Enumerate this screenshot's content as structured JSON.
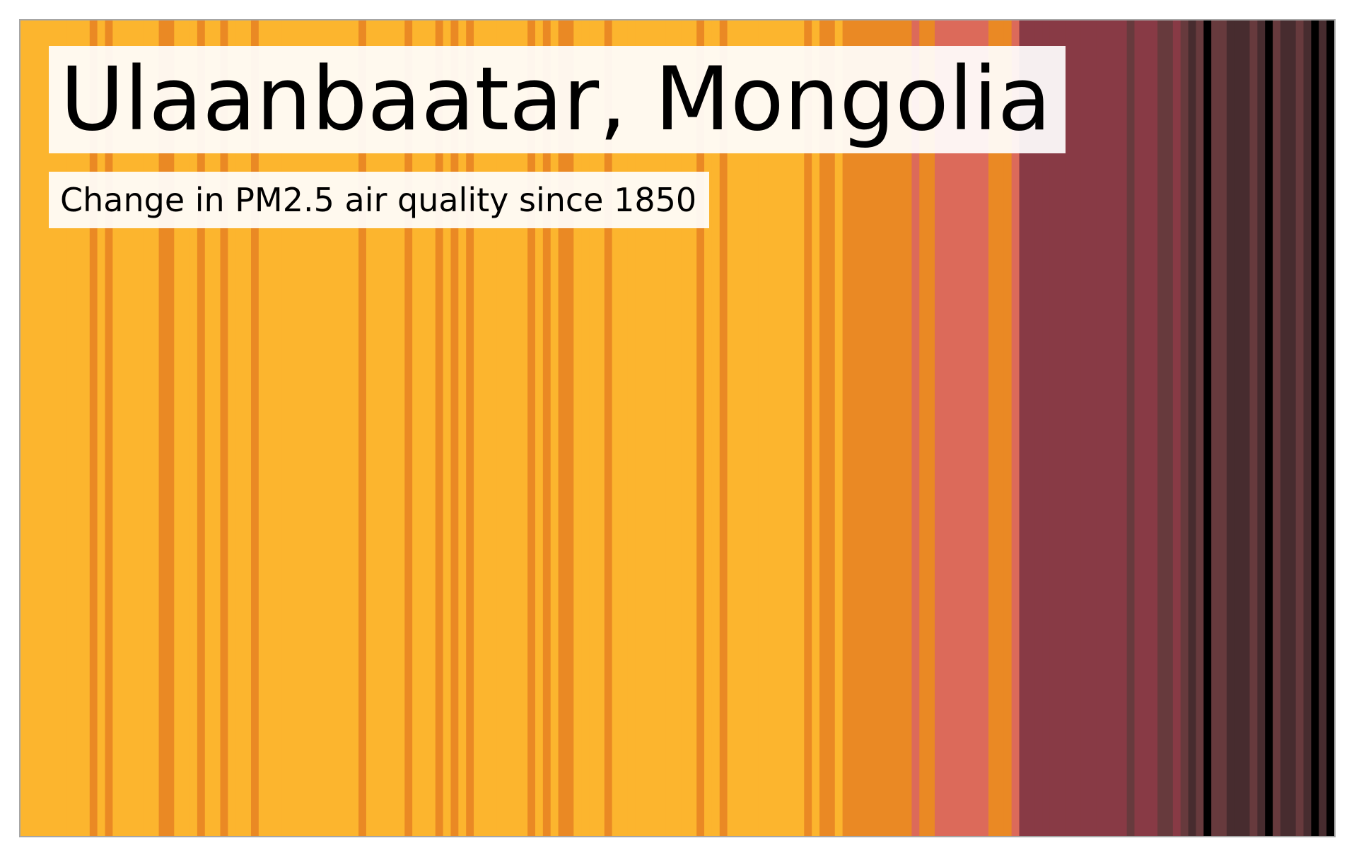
{
  "chart_data": {
    "type": "warming-stripes",
    "title": "Ulaanbaatar, Mongolia",
    "subtitle": "Change in PM2.5 air quality since 1850",
    "x_start": 1850,
    "x_end": 2021,
    "level_colors": [
      "#fcb52e",
      "#ea8924",
      "#dc6a5a",
      "#883a45",
      "#673a3d",
      "#472c2f",
      "#000000"
    ],
    "levels": [
      0,
      0,
      0,
      0,
      0,
      0,
      0,
      0,
      0,
      1,
      0,
      1,
      0,
      0,
      0,
      0,
      0,
      0,
      1,
      1,
      0,
      0,
      0,
      1,
      0,
      0,
      1,
      0,
      0,
      0,
      1,
      0,
      0,
      0,
      0,
      0,
      0,
      0,
      0,
      0,
      0,
      0,
      0,
      0,
      1,
      0,
      0,
      0,
      0,
      0,
      1,
      0,
      0,
      0,
      1,
      0,
      1,
      0,
      1,
      0,
      0,
      0,
      0,
      0,
      0,
      0,
      1,
      0,
      1,
      0,
      1,
      1,
      0,
      0,
      0,
      0,
      1,
      0,
      0,
      0,
      0,
      0,
      0,
      0,
      0,
      0,
      0,
      0,
      1,
      0,
      0,
      1,
      0,
      0,
      0,
      0,
      0,
      0,
      0,
      0,
      0,
      0,
      1,
      0,
      1,
      1,
      0,
      1,
      1,
      1,
      1,
      1,
      1,
      1,
      1,
      1,
      2,
      1,
      1,
      2,
      2,
      2,
      2,
      2,
      2,
      2,
      1,
      1,
      1,
      2,
      3,
      3,
      3,
      3,
      3,
      3,
      3,
      3,
      3,
      3,
      3,
      3,
      3,
      3,
      4,
      3,
      3,
      3,
      4,
      4,
      3,
      4,
      5,
      4,
      6,
      4,
      4,
      5,
      5,
      5,
      4,
      5,
      6,
      4,
      5,
      5,
      4,
      5,
      6,
      5,
      6
    ]
  }
}
